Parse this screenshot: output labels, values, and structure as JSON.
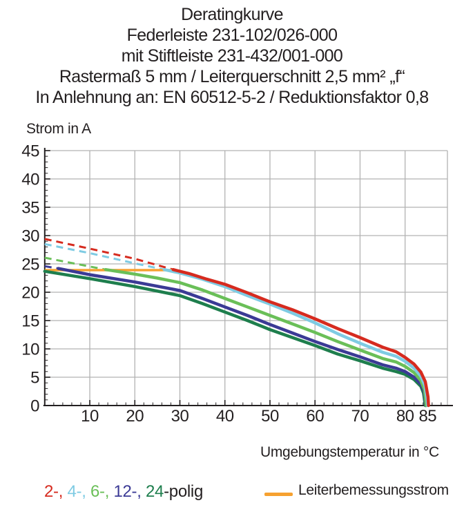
{
  "title_lines": [
    "Deratingkurve",
    "Federleiste 231-102/026-000",
    "mit Stiftleiste 231-432/001-000",
    "Rastermaß 5 mm / Leiterquerschnitt 2,5 mm² „f“",
    "In Anlehnung an: EN 60512-5-2 / Reduktionsfaktor 0,8"
  ],
  "colors": {
    "text": "#231f20",
    "grid": "#b2b2b2",
    "axis": "#231f20",
    "pole2": "#d62b1f",
    "pole4": "#7ecbe3",
    "pole6": "#6abf58",
    "pole12": "#3b3a95",
    "pole24": "#1e7e4d",
    "rated": "#f6a130"
  },
  "legend": {
    "pole_items": [
      {
        "text": "2-, ",
        "color": "#d62b1f"
      },
      {
        "text": "4-, ",
        "color": "#7ecbe3"
      },
      {
        "text": "6-, ",
        "color": "#6abf58"
      },
      {
        "text": "12-, ",
        "color": "#3b3a95"
      },
      {
        "text": "24",
        "color": "#1e7e4d"
      }
    ],
    "pole_suffix": "-polig",
    "rated_label": "Leiterbemessungsstrom"
  },
  "chart_data": {
    "type": "line",
    "title": "Deratingkurve Federleiste 231-102/026-000 mit Stiftleiste 231-432/001-000",
    "xlabel": "Umgebungstemperatur in °C",
    "ylabel": "Strom in A",
    "xlim": [
      0,
      89.4
    ],
    "ylim": [
      0,
      45
    ],
    "grid": true,
    "x_ticks_major": [
      10,
      20,
      30,
      40,
      50,
      60,
      70,
      80,
      85
    ],
    "x_ticks_minor_step": 2,
    "x_ticks_minor_max": 88,
    "y_ticks_major": [
      0,
      5,
      10,
      15,
      20,
      25,
      30,
      35,
      40,
      45
    ],
    "y_ticks_minor_step": 1,
    "legend_position": "bottom",
    "rated_line": {
      "name": "Leiterbemessungsstrom",
      "color": "#f6a130",
      "points": [
        [
          0,
          23.9
        ],
        [
          28.5,
          23.9
        ]
      ]
    },
    "series": [
      {
        "name": "24-polig",
        "color": "#1e7e4d",
        "dashed_points": [],
        "points": [
          [
            0,
            23.7
          ],
          [
            10,
            22.4
          ],
          [
            20,
            21.0
          ],
          [
            30,
            19.4
          ],
          [
            35,
            18.0
          ],
          [
            40,
            16.5
          ],
          [
            45,
            15.0
          ],
          [
            50,
            13.4
          ],
          [
            55,
            12.0
          ],
          [
            60,
            10.6
          ],
          [
            65,
            9.1
          ],
          [
            70,
            7.9
          ],
          [
            75,
            6.6
          ],
          [
            78,
            6.0
          ],
          [
            80,
            5.5
          ],
          [
            82,
            4.6
          ],
          [
            83.5,
            3.4
          ],
          [
            84.1,
            2.2
          ],
          [
            84.5,
            0
          ]
        ]
      },
      {
        "name": "12-polig",
        "color": "#3b3a95",
        "dashed_points": [
          [
            0,
            24.6
          ],
          [
            3,
            24.2
          ]
        ],
        "points": [
          [
            3,
            24.2
          ],
          [
            10,
            23.1
          ],
          [
            20,
            21.8
          ],
          [
            30,
            20.3
          ],
          [
            35,
            18.9
          ],
          [
            40,
            17.4
          ],
          [
            45,
            15.9
          ],
          [
            50,
            14.3
          ],
          [
            55,
            12.8
          ],
          [
            60,
            11.3
          ],
          [
            65,
            9.9
          ],
          [
            70,
            8.6
          ],
          [
            75,
            7.2
          ],
          [
            78,
            6.6
          ],
          [
            80,
            6.0
          ],
          [
            82,
            5.0
          ],
          [
            83.5,
            3.8
          ],
          [
            84.2,
            2.5
          ],
          [
            84.6,
            0
          ]
        ]
      },
      {
        "name": "6-polig",
        "color": "#6abf58",
        "dashed_points": [
          [
            0,
            26.1
          ],
          [
            7,
            25.0
          ],
          [
            13.5,
            24.0
          ]
        ],
        "points": [
          [
            13.5,
            24.0
          ],
          [
            20,
            23.2
          ],
          [
            25,
            22.5
          ],
          [
            30,
            21.7
          ],
          [
            35,
            20.4
          ],
          [
            40,
            18.9
          ],
          [
            45,
            17.4
          ],
          [
            50,
            15.9
          ],
          [
            55,
            14.4
          ],
          [
            60,
            12.9
          ],
          [
            65,
            11.3
          ],
          [
            70,
            9.8
          ],
          [
            75,
            8.3
          ],
          [
            78,
            7.7
          ],
          [
            80,
            6.9
          ],
          [
            82,
            5.8
          ],
          [
            83.5,
            4.4
          ],
          [
            84.3,
            2.8
          ],
          [
            84.7,
            0
          ]
        ]
      },
      {
        "name": "4-polig",
        "color": "#7ecbe3",
        "dashed_points": [
          [
            0,
            28.5
          ],
          [
            10,
            26.9
          ],
          [
            20,
            25.1
          ],
          [
            26.5,
            24.0
          ]
        ],
        "points": [
          [
            26.5,
            24.0
          ],
          [
            30,
            23.4
          ],
          [
            35,
            22.3
          ],
          [
            40,
            21.0
          ],
          [
            45,
            19.4
          ],
          [
            50,
            17.9
          ],
          [
            55,
            16.3
          ],
          [
            60,
            14.6
          ],
          [
            65,
            12.7
          ],
          [
            70,
            11.0
          ],
          [
            75,
            9.4
          ],
          [
            78,
            8.7
          ],
          [
            80,
            7.8
          ],
          [
            82,
            6.6
          ],
          [
            83.5,
            5.2
          ],
          [
            84.4,
            3.5
          ],
          [
            84.9,
            1.0
          ],
          [
            85,
            0
          ]
        ]
      },
      {
        "name": "2-polig",
        "color": "#d62b1f",
        "dashed_points": [
          [
            0,
            29.4
          ],
          [
            10,
            27.7
          ],
          [
            20,
            25.9
          ],
          [
            28.5,
            24.0
          ]
        ],
        "points": [
          [
            28.5,
            24.0
          ],
          [
            32,
            23.3
          ],
          [
            36,
            22.3
          ],
          [
            40,
            21.4
          ],
          [
            45,
            19.9
          ],
          [
            50,
            18.3
          ],
          [
            55,
            16.9
          ],
          [
            60,
            15.3
          ],
          [
            65,
            13.6
          ],
          [
            70,
            12.0
          ],
          [
            75,
            10.3
          ],
          [
            78,
            9.5
          ],
          [
            80,
            8.5
          ],
          [
            82,
            7.3
          ],
          [
            83.5,
            5.9
          ],
          [
            84.5,
            4.2
          ],
          [
            85.1,
            1.5
          ],
          [
            85.2,
            0
          ]
        ]
      }
    ]
  }
}
